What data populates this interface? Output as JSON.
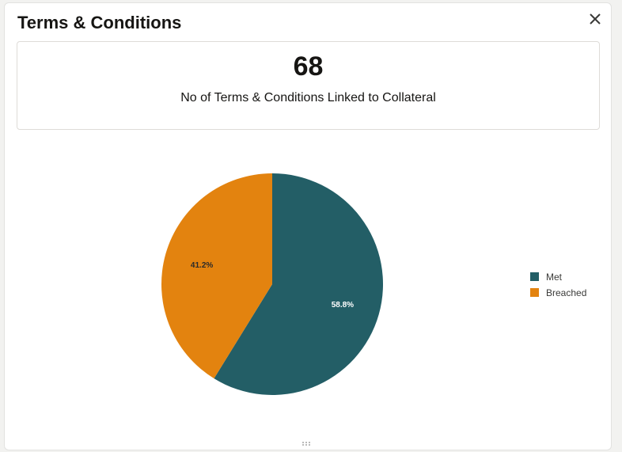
{
  "dialog": {
    "title": "Terms & Conditions",
    "close_icon": "close-icon"
  },
  "summary": {
    "count": "68",
    "label": "No of Terms & Conditions Linked to Collateral"
  },
  "colors": {
    "met": "#235e66",
    "breached": "#e3830f"
  },
  "chart_data": {
    "type": "pie",
    "categories": [
      "Met",
      "Breached"
    ],
    "values": [
      58.8,
      41.2
    ],
    "labels": [
      "58.8%",
      "41.2%"
    ],
    "colors": [
      "#235e66",
      "#e3830f"
    ],
    "legend_position": "right"
  },
  "footer": {
    "grip_icon": "drag-handle-icon"
  }
}
